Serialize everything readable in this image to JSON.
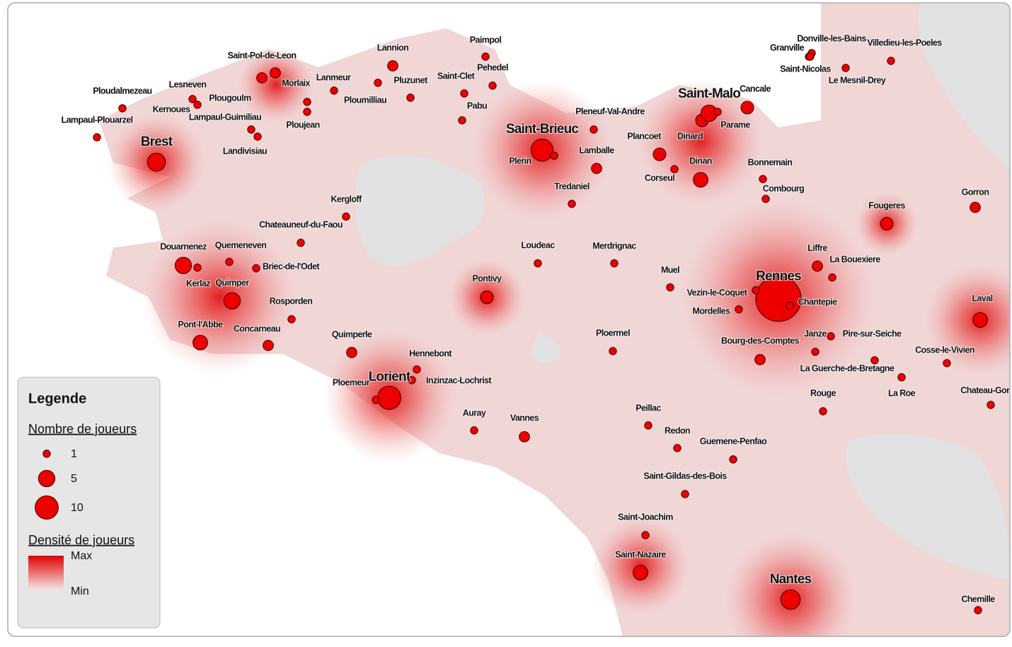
{
  "legend": {
    "title": "Legende",
    "size_title": "Nombre de joueurs",
    "sizes": [
      1,
      5,
      10
    ],
    "density_title": "Densité de joueurs",
    "max": "Max",
    "min": "Min"
  },
  "cities": [
    {
      "name": "Brest",
      "players": 6
    },
    {
      "name": "Saint-Pol-de-Leon",
      "players": 2
    },
    {
      "name": "Morlaix",
      "players": 2
    },
    {
      "name": "Lesneven",
      "players": 1
    },
    {
      "name": "Ploudalmezeau",
      "players": 1
    },
    {
      "name": "Kernoues",
      "players": 1
    },
    {
      "name": "Plougoulm",
      "players": 1
    },
    {
      "name": "Ploujean",
      "players": 1
    },
    {
      "name": "Lampaul-Guimiliau",
      "players": 1
    },
    {
      "name": "Landivisiau",
      "players": 1
    },
    {
      "name": "Lampaul-Plouarzel",
      "players": 1
    },
    {
      "name": "Lanmeur",
      "players": 1
    },
    {
      "name": "Ploumilliau",
      "players": 1
    },
    {
      "name": "Lannion",
      "players": 2
    },
    {
      "name": "Pluzunet",
      "players": 1
    },
    {
      "name": "Paimpol",
      "players": 1
    },
    {
      "name": "Saint-Clet",
      "players": 1
    },
    {
      "name": "Pehedel",
      "players": 1
    },
    {
      "name": "Pabu",
      "players": 1
    },
    {
      "name": "Saint-Brieuc",
      "players": 9
    },
    {
      "name": "Plerin",
      "players": 1
    },
    {
      "name": "Pleneuf-Val-Andre",
      "players": 1
    },
    {
      "name": "Lamballe",
      "players": 2
    },
    {
      "name": "Tredaniel",
      "players": 1
    },
    {
      "name": "Plancoet",
      "players": 3
    },
    {
      "name": "Dinard",
      "players": 3
    },
    {
      "name": "Saint-Malo",
      "players": 5
    },
    {
      "name": "Cancale",
      "players": 3
    },
    {
      "name": "Parame",
      "players": 1
    },
    {
      "name": "Corseul",
      "players": 1
    },
    {
      "name": "Dinan",
      "players": 4
    },
    {
      "name": "Bonnemain",
      "players": 1
    },
    {
      "name": "Combourg",
      "players": 1
    },
    {
      "name": "Granville",
      "players": 1
    },
    {
      "name": "Donville-les-Bains",
      "players": 1
    },
    {
      "name": "Saint-Nicolas",
      "players": 1
    },
    {
      "name": "Villedieu-les-Poeles",
      "players": 1
    },
    {
      "name": "Le Mesnil-Drey",
      "players": 1
    },
    {
      "name": "Gorron",
      "players": 2
    },
    {
      "name": "Fougeres",
      "players": 3
    },
    {
      "name": "Kergloff",
      "players": 1
    },
    {
      "name": "Chateauneuf-du-Faou",
      "players": 1
    },
    {
      "name": "Douarnenez",
      "players": 5
    },
    {
      "name": "Quemeneven",
      "players": 1
    },
    {
      "name": "Briec-de-l'Odet",
      "players": 1
    },
    {
      "name": "Kerlaz",
      "players": 1
    },
    {
      "name": "Quimper",
      "players": 5
    },
    {
      "name": "Rosporden",
      "players": 1
    },
    {
      "name": "Pont-l'Abbe",
      "players": 4
    },
    {
      "name": "Concarneau",
      "players": 2
    },
    {
      "name": "Quimperle",
      "players": 2
    },
    {
      "name": "Hennebont",
      "players": 1
    },
    {
      "name": "Inzinzac-Lochrist",
      "players": 1
    },
    {
      "name": "Lorient",
      "players": 10
    },
    {
      "name": "Ploemeur",
      "players": 1
    },
    {
      "name": "Pontivy",
      "players": 3
    },
    {
      "name": "Loudeac",
      "players": 1
    },
    {
      "name": "Merdrignac",
      "players": 1
    },
    {
      "name": "Muel",
      "players": 1
    },
    {
      "name": "Ploermel",
      "players": 1
    },
    {
      "name": "Auray",
      "players": 1
    },
    {
      "name": "Vannes",
      "players": 2
    },
    {
      "name": "Peillac",
      "players": 1
    },
    {
      "name": "Redon",
      "players": 1
    },
    {
      "name": "Guemene-Penfao",
      "players": 1
    },
    {
      "name": "Saint-Gildas-des-Bois",
      "players": 1
    },
    {
      "name": "Saint-Joachim",
      "players": 1
    },
    {
      "name": "Saint-Nazaire",
      "players": 4
    },
    {
      "name": "Nantes",
      "players": 7
    },
    {
      "name": "Rennes",
      "players": 38
    },
    {
      "name": "Liffre",
      "players": 2
    },
    {
      "name": "La Bouexiere",
      "players": 1
    },
    {
      "name": "Vezin-le-Coquet",
      "players": 1
    },
    {
      "name": "Chantepie",
      "players": 1
    },
    {
      "name": "Mordelles",
      "players": 1
    },
    {
      "name": "Janze",
      "players": 1
    },
    {
      "name": "Pire-sur-Seiche",
      "players": 1
    },
    {
      "name": "Bourg-des-Comptes",
      "players": 2
    },
    {
      "name": "La Guerche-de-Bretagne",
      "players": 1
    },
    {
      "name": "Rouge",
      "players": 1
    },
    {
      "name": "La Roe",
      "players": 1
    },
    {
      "name": "Laval",
      "players": 4
    },
    {
      "name": "Cosse-le-Vivien",
      "players": 1
    },
    {
      "name": "Chateau-Gont",
      "players": 1
    },
    {
      "name": "Chemille",
      "players": 1
    }
  ]
}
